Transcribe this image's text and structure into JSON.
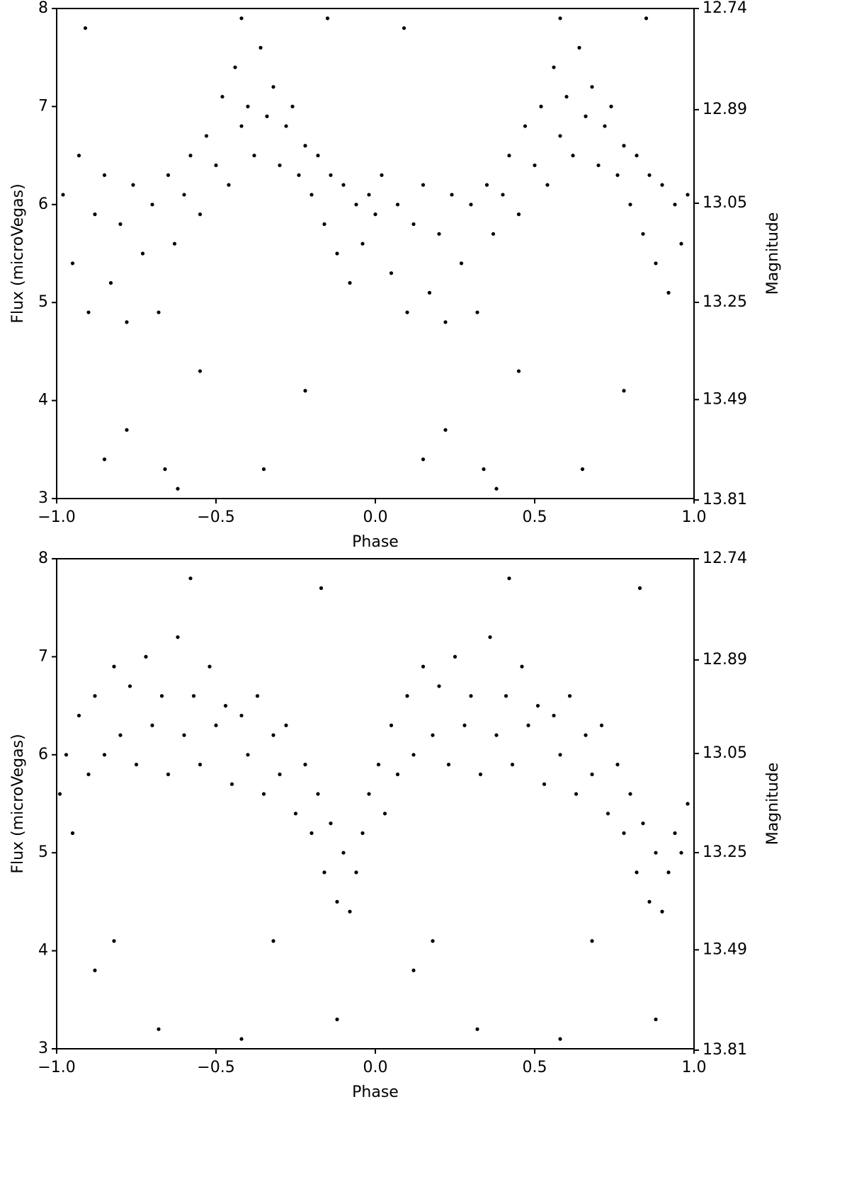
{
  "chart_data": [
    {
      "type": "scatter",
      "xlabel": "Phase",
      "ylabel": "Flux (microVegas)",
      "y2label": "Magnitude",
      "color": "#000000",
      "xlim": [
        -1,
        1
      ],
      "ylim": [
        3,
        8
      ],
      "y2lim": [
        13.81,
        12.74
      ],
      "y2scale": "magnitude",
      "xticks": [
        {
          "value": -1,
          "label": "−1.0"
        },
        {
          "value": -0.5,
          "label": "−0.5"
        },
        {
          "value": 0,
          "label": "0.0"
        },
        0.5,
        {
          "value": 1,
          "label": "1.0"
        }
      ],
      "yticks": [
        3,
        4,
        5,
        6,
        7,
        8
      ],
      "y2ticks": [
        13.81,
        13.49,
        13.25,
        13.05,
        12.89,
        12.74
      ],
      "x": [
        -0.98,
        -0.95,
        -0.93,
        -0.9,
        -0.88,
        -0.85,
        -0.83,
        -0.8,
        -0.78,
        -0.76,
        -0.73,
        -0.7,
        -0.68,
        -0.65,
        -0.63,
        -0.6,
        -0.58,
        -0.55,
        -0.53,
        -0.5,
        -0.48,
        -0.46,
        -0.44,
        -0.42,
        -0.4,
        -0.38,
        -0.36,
        -0.34,
        -0.32,
        -0.3,
        -0.28,
        -0.26,
        -0.24,
        -0.22,
        -0.2,
        -0.18,
        -0.16,
        -0.14,
        -0.12,
        -0.1,
        -0.08,
        -0.06,
        -0.04,
        -0.02,
        -0.85,
        -0.66,
        -0.91,
        -0.55,
        -0.35,
        -0.22,
        -0.78,
        -0.62,
        -0.42,
        -0.15,
        0.0,
        0.02,
        0.05,
        0.07,
        0.1,
        0.12,
        0.15,
        0.17,
        0.2,
        0.22,
        0.24,
        0.27,
        0.3,
        0.32,
        0.35,
        0.37,
        0.4,
        0.42,
        0.45,
        0.47,
        0.5,
        0.52,
        0.54,
        0.56,
        0.58,
        0.6,
        0.62,
        0.64,
        0.66,
        0.68,
        0.7,
        0.72,
        0.74,
        0.76,
        0.78,
        0.8,
        0.82,
        0.84,
        0.86,
        0.88,
        0.9,
        0.92,
        0.94,
        0.96,
        0.98,
        0.15,
        0.34,
        0.09,
        0.45,
        0.65,
        0.78,
        0.22,
        0.38,
        0.58,
        0.85
      ],
      "values": [
        6.1,
        5.4,
        6.5,
        4.9,
        5.9,
        6.3,
        5.2,
        5.8,
        4.8,
        6.2,
        5.5,
        6.0,
        4.9,
        6.3,
        5.6,
        6.1,
        6.5,
        5.9,
        6.7,
        6.4,
        7.1,
        6.2,
        7.4,
        6.8,
        7.0,
        6.5,
        7.6,
        6.9,
        7.2,
        6.4,
        6.8,
        7.0,
        6.3,
        6.6,
        6.1,
        6.5,
        5.8,
        6.3,
        5.5,
        6.2,
        5.2,
        6.0,
        5.6,
        6.1,
        3.4,
        3.3,
        7.8,
        4.3,
        3.3,
        4.1,
        3.7,
        3.1,
        7.9,
        7.9,
        5.9,
        6.3,
        5.3,
        6.0,
        4.9,
        5.8,
        6.2,
        5.1,
        5.7,
        4.8,
        6.1,
        5.4,
        6.0,
        4.9,
        6.2,
        5.7,
        6.1,
        6.5,
        5.9,
        6.8,
        6.4,
        7.0,
        6.2,
        7.4,
        6.7,
        7.1,
        6.5,
        7.6,
        6.9,
        7.2,
        6.4,
        6.8,
        7.0,
        6.3,
        6.6,
        6.0,
        6.5,
        5.7,
        6.3,
        5.4,
        6.2,
        5.1,
        6.0,
        5.6,
        6.1,
        3.4,
        3.3,
        7.8,
        4.3,
        3.3,
        4.1,
        3.7,
        3.1,
        7.9,
        7.9
      ]
    },
    {
      "type": "scatter",
      "xlabel": "Phase",
      "ylabel": "Flux (microVegas)",
      "y2label": "Magnitude",
      "color": "#000000",
      "xlim": [
        -1,
        1
      ],
      "ylim": [
        3,
        8
      ],
      "y2lim": [
        13.81,
        12.74
      ],
      "y2scale": "magnitude",
      "xticks": [
        {
          "value": -1,
          "label": "−1.0"
        },
        {
          "value": -0.5,
          "label": "−0.5"
        },
        {
          "value": 0,
          "label": "0.0"
        },
        0.5,
        {
          "value": 1,
          "label": "1.0"
        }
      ],
      "yticks": [
        3,
        4,
        5,
        6,
        7,
        8
      ],
      "y2ticks": [
        13.81,
        13.49,
        13.25,
        13.05,
        12.89,
        12.74
      ],
      "x": [
        -0.99,
        -0.97,
        -0.95,
        -0.93,
        -0.9,
        -0.88,
        -0.85,
        -0.82,
        -0.8,
        -0.77,
        -0.75,
        -0.72,
        -0.7,
        -0.67,
        -0.65,
        -0.62,
        -0.6,
        -0.57,
        -0.55,
        -0.52,
        -0.5,
        -0.47,
        -0.45,
        -0.42,
        -0.4,
        -0.37,
        -0.35,
        -0.32,
        -0.3,
        -0.28,
        -0.25,
        -0.22,
        -0.2,
        -0.18,
        -0.16,
        -0.14,
        -0.12,
        -0.1,
        -0.08,
        -0.06,
        -0.04,
        -0.02,
        -0.88,
        -0.68,
        -0.58,
        -0.42,
        -0.12,
        -0.17,
        -0.82,
        -0.32,
        0.01,
        0.03,
        0.05,
        0.07,
        0.1,
        0.12,
        0.15,
        0.18,
        0.2,
        0.23,
        0.25,
        0.28,
        0.3,
        0.33,
        0.36,
        0.38,
        0.41,
        0.43,
        0.46,
        0.48,
        0.51,
        0.53,
        0.56,
        0.58,
        0.61,
        0.63,
        0.66,
        0.68,
        0.71,
        0.73,
        0.76,
        0.78,
        0.8,
        0.82,
        0.84,
        0.86,
        0.88,
        0.9,
        0.92,
        0.94,
        0.96,
        0.98,
        0.12,
        0.32,
        0.42,
        0.58,
        0.88,
        0.83,
        0.18,
        0.68
      ],
      "values": [
        5.6,
        6.0,
        5.2,
        6.4,
        5.8,
        6.6,
        6.0,
        6.9,
        6.2,
        6.7,
        5.9,
        7.0,
        6.3,
        6.6,
        5.8,
        7.2,
        6.2,
        6.6,
        5.9,
        6.9,
        6.3,
        6.5,
        5.7,
        6.4,
        6.0,
        6.6,
        5.6,
        6.2,
        5.8,
        6.3,
        5.4,
        5.9,
        5.2,
        5.6,
        4.8,
        5.3,
        4.5,
        5.0,
        4.4,
        4.8,
        5.2,
        5.6,
        3.8,
        3.2,
        7.8,
        3.1,
        3.3,
        7.7,
        4.1,
        4.1,
        5.9,
        5.4,
        6.3,
        5.8,
        6.6,
        6.0,
        6.9,
        6.2,
        6.7,
        5.9,
        7.0,
        6.3,
        6.6,
        5.8,
        7.2,
        6.2,
        6.6,
        5.9,
        6.9,
        6.3,
        6.5,
        5.7,
        6.4,
        6.0,
        6.6,
        5.6,
        6.2,
        5.8,
        6.3,
        5.4,
        5.9,
        5.2,
        5.6,
        4.8,
        5.3,
        4.5,
        5.0,
        4.4,
        4.8,
        5.2,
        5.0,
        5.5,
        3.8,
        3.2,
        7.8,
        3.1,
        3.3,
        7.7,
        4.1,
        4.1
      ]
    }
  ]
}
